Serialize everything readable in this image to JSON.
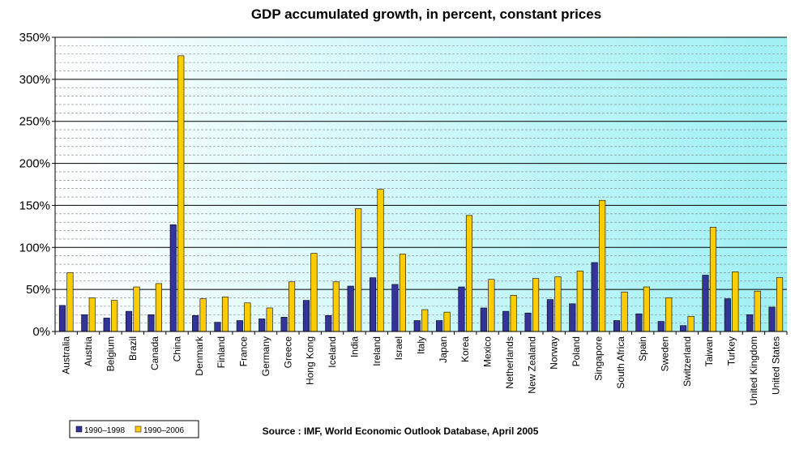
{
  "chart_data": {
    "type": "bar",
    "title": "GDP accumulated growth, in percent, constant prices",
    "source": "Source : IMF, World Economic Outlook Database, April 2005",
    "ylim": [
      0,
      350
    ],
    "yticks": [
      "0%",
      "50%",
      "100%",
      "150%",
      "200%",
      "250%",
      "300%",
      "350%"
    ],
    "ytick_values": [
      0,
      50,
      100,
      150,
      200,
      250,
      300,
      350
    ],
    "grid": true,
    "legend_position": "bottom-left",
    "categories": [
      "Australia",
      "Austria",
      "Belgium",
      "Brazil",
      "Canada",
      "China",
      "Denmark",
      "Finland",
      "France",
      "Germany",
      "Greece",
      "Hong Kong",
      "Iceland",
      "India",
      "Ireland",
      "Israel",
      "Italy",
      "Japan",
      "Korea",
      "Mexico",
      "Netherlands",
      "New Zealand",
      "Norway",
      "Poland",
      "Singapore",
      "South Africa",
      "Spain",
      "Sweden",
      "Switzerland",
      "Taiwan",
      "Turkey",
      "United Kingdom",
      "United States"
    ],
    "series": [
      {
        "name": "1990–1998",
        "color": "#333399",
        "values": [
          31,
          20,
          16,
          24,
          20,
          127,
          19,
          11,
          13,
          15,
          17,
          37,
          19,
          54,
          64,
          56,
          13,
          13,
          53,
          28,
          24,
          22,
          38,
          33,
          82,
          13,
          21,
          12,
          7,
          67,
          39,
          20,
          29
        ]
      },
      {
        "name": "1990–2006",
        "color": "#FFCC00",
        "values": [
          70,
          40,
          37,
          53,
          57,
          328,
          39,
          41,
          34,
          28,
          59,
          93,
          59,
          146,
          169,
          92,
          26,
          23,
          138,
          62,
          43,
          63,
          65,
          72,
          156,
          47,
          53,
          40,
          18,
          124,
          71,
          48,
          64
        ]
      }
    ]
  }
}
